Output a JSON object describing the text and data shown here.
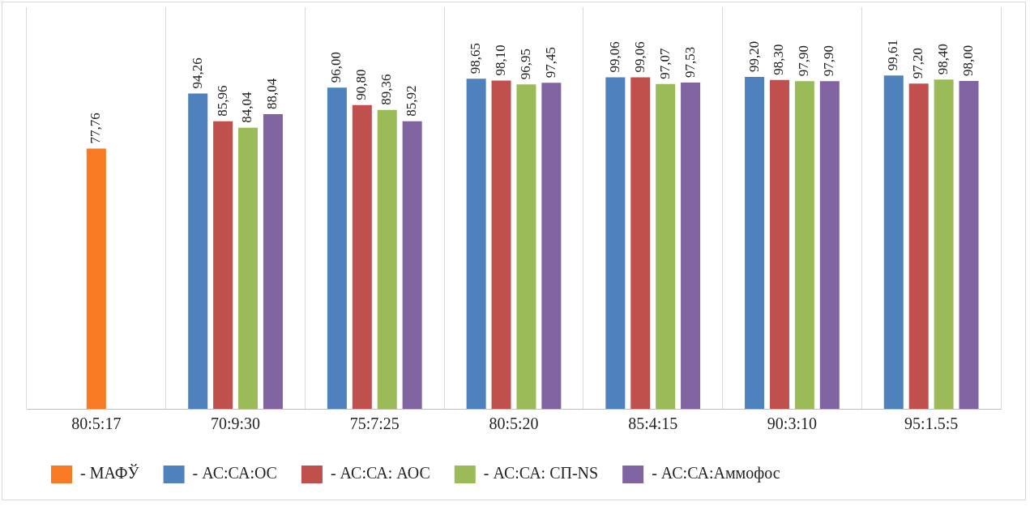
{
  "chart_data": {
    "type": "bar",
    "categories": [
      "80:5:17",
      "70:9:30",
      "75:7:25",
      "80:5:20",
      "85:4:15",
      "90:3:10",
      "95:1.5:5"
    ],
    "series": [
      {
        "name": "- МАФЎ",
        "color": "#f87a24",
        "values": [
          77.76,
          null,
          null,
          null,
          null,
          null,
          null
        ],
        "value_labels": [
          "77,76",
          null,
          null,
          null,
          null,
          null,
          null
        ]
      },
      {
        "name": "- АС:СА:ОС",
        "color": "#4f81bd",
        "values": [
          null,
          94.26,
          96.0,
          98.65,
          99.06,
          99.2,
          99.61
        ],
        "value_labels": [
          null,
          "94,26",
          "96,00",
          "98,65",
          "99,06",
          "99,20",
          "99,61"
        ]
      },
      {
        "name": "- АС:СА: АОС",
        "color": "#c0504d",
        "values": [
          null,
          85.96,
          90.8,
          98.1,
          99.06,
          98.3,
          97.2
        ],
        "value_labels": [
          null,
          "85,96",
          "90,80",
          "98,10",
          "99,06",
          "98,30",
          "97,20"
        ]
      },
      {
        "name": "- АС:СА: СП-NS",
        "color": "#9bbb59",
        "values": [
          null,
          84.04,
          89.36,
          96.95,
          97.07,
          97.9,
          98.4
        ],
        "value_labels": [
          null,
          "84,04",
          "89,36",
          "96,95",
          "97,07",
          "97,90",
          "98,40"
        ]
      },
      {
        "name": "- АС:СА:Аммофос",
        "color": "#8064a2",
        "values": [
          null,
          88.04,
          85.92,
          97.45,
          97.53,
          97.9,
          98.0
        ],
        "value_labels": [
          null,
          "88,04",
          "85,92",
          "97,45",
          "97,53",
          "97,90",
          "98,00"
        ]
      }
    ],
    "grid": "x",
    "legend": "bottom"
  }
}
